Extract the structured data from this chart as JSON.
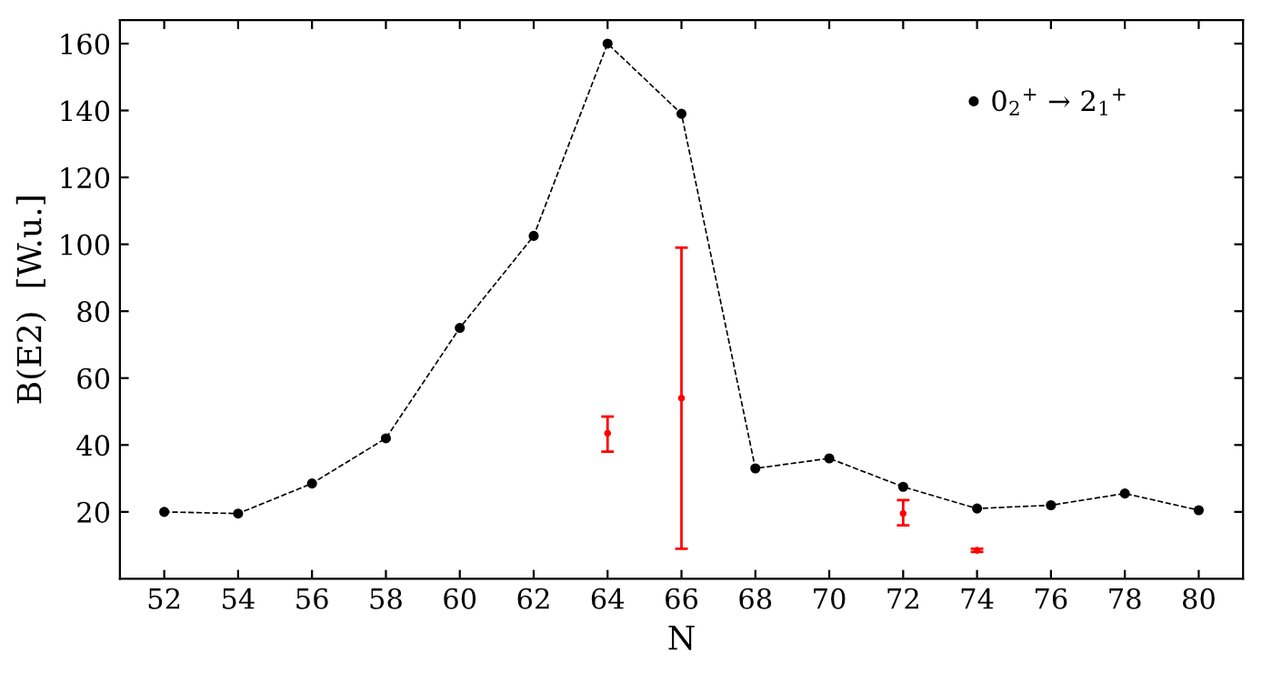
{
  "chart_data": {
    "type": "line",
    "xlabel": "N",
    "ylabel": "B(E2)  [W.u.]",
    "xlim": [
      50.8,
      81.2
    ],
    "xticks": [
      52,
      54,
      56,
      58,
      60,
      62,
      64,
      66,
      68,
      70,
      72,
      74,
      76,
      78,
      80
    ],
    "ylim": [
      0,
      167
    ],
    "yticks": [
      20,
      40,
      60,
      80,
      100,
      120,
      140,
      160
    ],
    "grid": false,
    "legend": "top right",
    "series": [
      {
        "name": "0$_{2}$$^{+}$ → 2$_{1}$$^{+}$",
        "color": "#000000",
        "marker": "circle",
        "line_style": "dashed",
        "x": [
          52,
          54,
          56,
          58,
          60,
          62,
          64,
          66,
          68,
          70,
          72,
          74,
          76,
          78,
          80
        ],
        "values": [
          20,
          19.5,
          28.5,
          42,
          75,
          102.5,
          160,
          139,
          33,
          36,
          27.5,
          21,
          22,
          25.5,
          20.5
        ]
      },
      {
        "type": "scatter",
        "color": "#ff0000",
        "marker": "circle",
        "x": [
          64,
          66,
          72,
          74
        ],
        "values": [
          43.5,
          54,
          19.5,
          8.5
        ],
        "errors": [
          [
            38,
            48.5
          ],
          [
            9,
            99
          ],
          [
            16,
            23.5
          ],
          [
            8,
            9
          ]
        ]
      }
    ]
  }
}
